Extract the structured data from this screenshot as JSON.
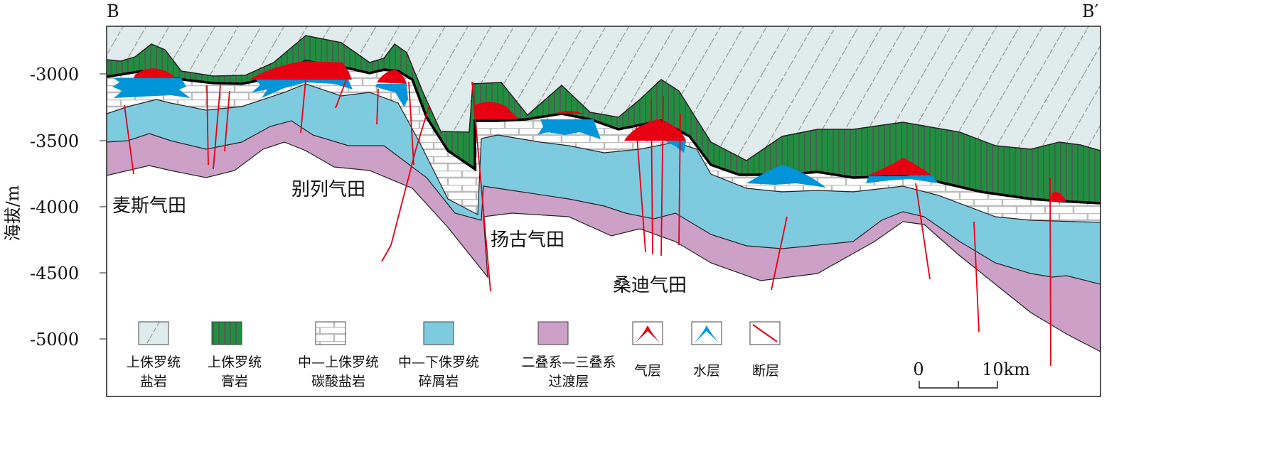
{
  "section": {
    "left_label": "B",
    "right_label": "B′"
  },
  "y_axis": {
    "label": "海拔/m",
    "ticks": [
      "-3000",
      "-3500",
      "-4000",
      "-4500",
      "-5000"
    ]
  },
  "fields": [
    "麦斯气田",
    "别列气田",
    "扬古气田",
    "桑迪气田"
  ],
  "legend": [
    {
      "line1": "上侏罗统",
      "line2": "盐岩",
      "icon": "salt-pattern"
    },
    {
      "line1": "上侏罗统",
      "line2": "膏岩",
      "icon": "gypsum-pattern"
    },
    {
      "line1": "中—上侏罗统",
      "line2": "碳酸盐岩",
      "icon": "carbonate-brick-pattern"
    },
    {
      "line1": "中—下侏罗统",
      "line2": "碎屑岩",
      "icon": "clastic-fill"
    },
    {
      "line1": "二叠系—三叠系",
      "line2": "过渡层",
      "icon": "permian-triassic-fill"
    },
    {
      "line1": "气层",
      "line2": "",
      "icon": "gas-layer"
    },
    {
      "line1": "水层",
      "line2": "",
      "icon": "water-layer"
    },
    {
      "line1": "断层",
      "line2": "",
      "icon": "fault-line"
    }
  ],
  "scale_bar": {
    "start": "0",
    "end": "10km"
  },
  "colors": {
    "salt": "#e0ecec",
    "gypsum": "#1f8f3f",
    "clastic": "#7ecbe0",
    "permian": "#cda0c8",
    "gas": "#e60012",
    "water": "#0095d9",
    "fault": "#e60012"
  }
}
